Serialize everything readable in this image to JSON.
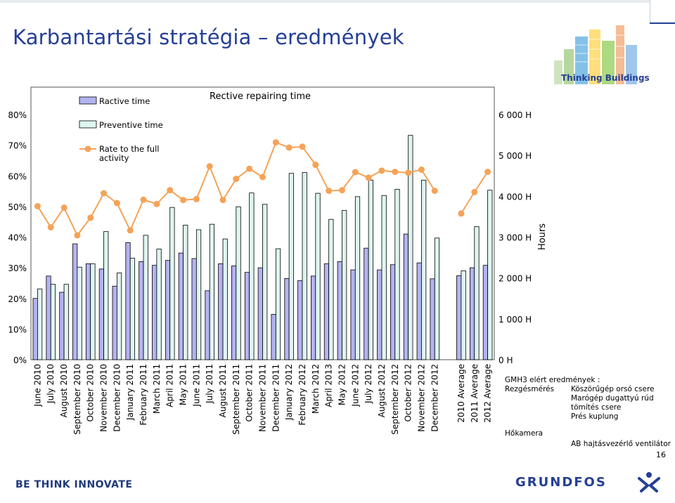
{
  "slide": {
    "title": "Karbantartási stratégia – eredmények",
    "brand_tagline": "Thinking Buildings",
    "page_number": "16",
    "footer_left": "BE THINK INNOVATE",
    "footer_logo": "GRUNDFOS",
    "accent_color": "#243f95"
  },
  "annotations": {
    "title": "GMH3 elért eredmények :",
    "items": [
      {
        "left": "Rezgésmérés",
        "right": "Köszörűgép orsó csere"
      },
      {
        "left": "",
        "right": "Marógép dugattyú rúd"
      },
      {
        "left": "",
        "right": "tömítés csere"
      },
      {
        "left": "",
        "right": "Prés kuplung"
      },
      {
        "left": "Hőkamera",
        "right": ""
      },
      {
        "left": "",
        "right": "AB hajtásvezérlő ventilátor"
      }
    ]
  },
  "chart_data": {
    "type": "bar",
    "title": "Rective repairing time",
    "y_right_label": "Hours",
    "y_left_ticks": [
      "0%",
      "10%",
      "20%",
      "30%",
      "40%",
      "50%",
      "60%",
      "70%",
      "80%"
    ],
    "y_right_ticks": [
      "0 H",
      "1 000 H",
      "2 000 H",
      "3 000 H",
      "4 000 H",
      "5 000 H",
      "6 000 H"
    ],
    "ylim_left": [
      0,
      80
    ],
    "ylim_right": [
      0,
      6000
    ],
    "grid": false,
    "legend_position": "top-left",
    "categories": [
      "June 2010",
      "July 2010",
      "August 2010",
      "September 2010",
      "October 2010",
      "November 2010",
      "December 2010",
      "January 2011",
      "February 2011",
      "March 2011",
      "April 2011",
      "May 2011",
      "June 2011",
      "July 2011",
      "August 2011",
      "September 2011",
      "October 2011",
      "November 2011",
      "December 2011",
      "January 2012",
      "February 2012",
      "March 2012",
      "April 2013",
      "May 2012",
      "June 2012",
      "July 2012",
      "August 2012",
      "September 2012",
      "October 2012",
      "November 2012",
      "December 2012",
      "",
      "2010 Average",
      "2011 Average",
      "2012 Average"
    ],
    "series": [
      {
        "name": "Ractive time",
        "axis": "left",
        "color": "#b3b3f0",
        "values": [
          20,
          27.3,
          22,
          37.8,
          31.3,
          29.6,
          24,
          38.2,
          32,
          30.8,
          32.4,
          34.8,
          33,
          22.5,
          31.3,
          30.6,
          28.5,
          30,
          14.8,
          26.5,
          25.8,
          27.3,
          31.3,
          32,
          29.3,
          36.4,
          29.3,
          31,
          41,
          31.6,
          26.4,
          null,
          27.4,
          30,
          30.8
        ]
      },
      {
        "name": "Preventive time",
        "axis": "left",
        "color": "#def5f0",
        "values": [
          23.1,
          24.6,
          24.6,
          30.2,
          31.3,
          41.8,
          28.3,
          33.1,
          40.6,
          36.1,
          49.7,
          43.9,
          42.4,
          44.2,
          39.4,
          49.9,
          54.4,
          50.7,
          36.2,
          60.8,
          61.1,
          54.3,
          45.8,
          48.7,
          53.2,
          58.6,
          53.6,
          55.6,
          73.2,
          58.6,
          39.7,
          null,
          29,
          43.4,
          55.3
        ]
      },
      {
        "name": "Rate to the full activity",
        "axis": "left",
        "color": "#f4a358",
        "values": [
          50.1,
          43.2,
          49.6,
          40.6,
          46.3,
          54.3,
          51.1,
          42.2,
          52.2,
          50.8,
          55.3,
          52.1,
          52.4,
          63.1,
          52.1,
          59,
          62.3,
          59.6,
          70.9,
          69.2,
          69.5,
          63.6,
          55.1,
          55.3,
          61.2,
          59.4,
          61.7,
          61.3,
          61,
          62,
          55.1,
          null,
          47.7,
          54.7,
          61.3
        ]
      }
    ]
  }
}
